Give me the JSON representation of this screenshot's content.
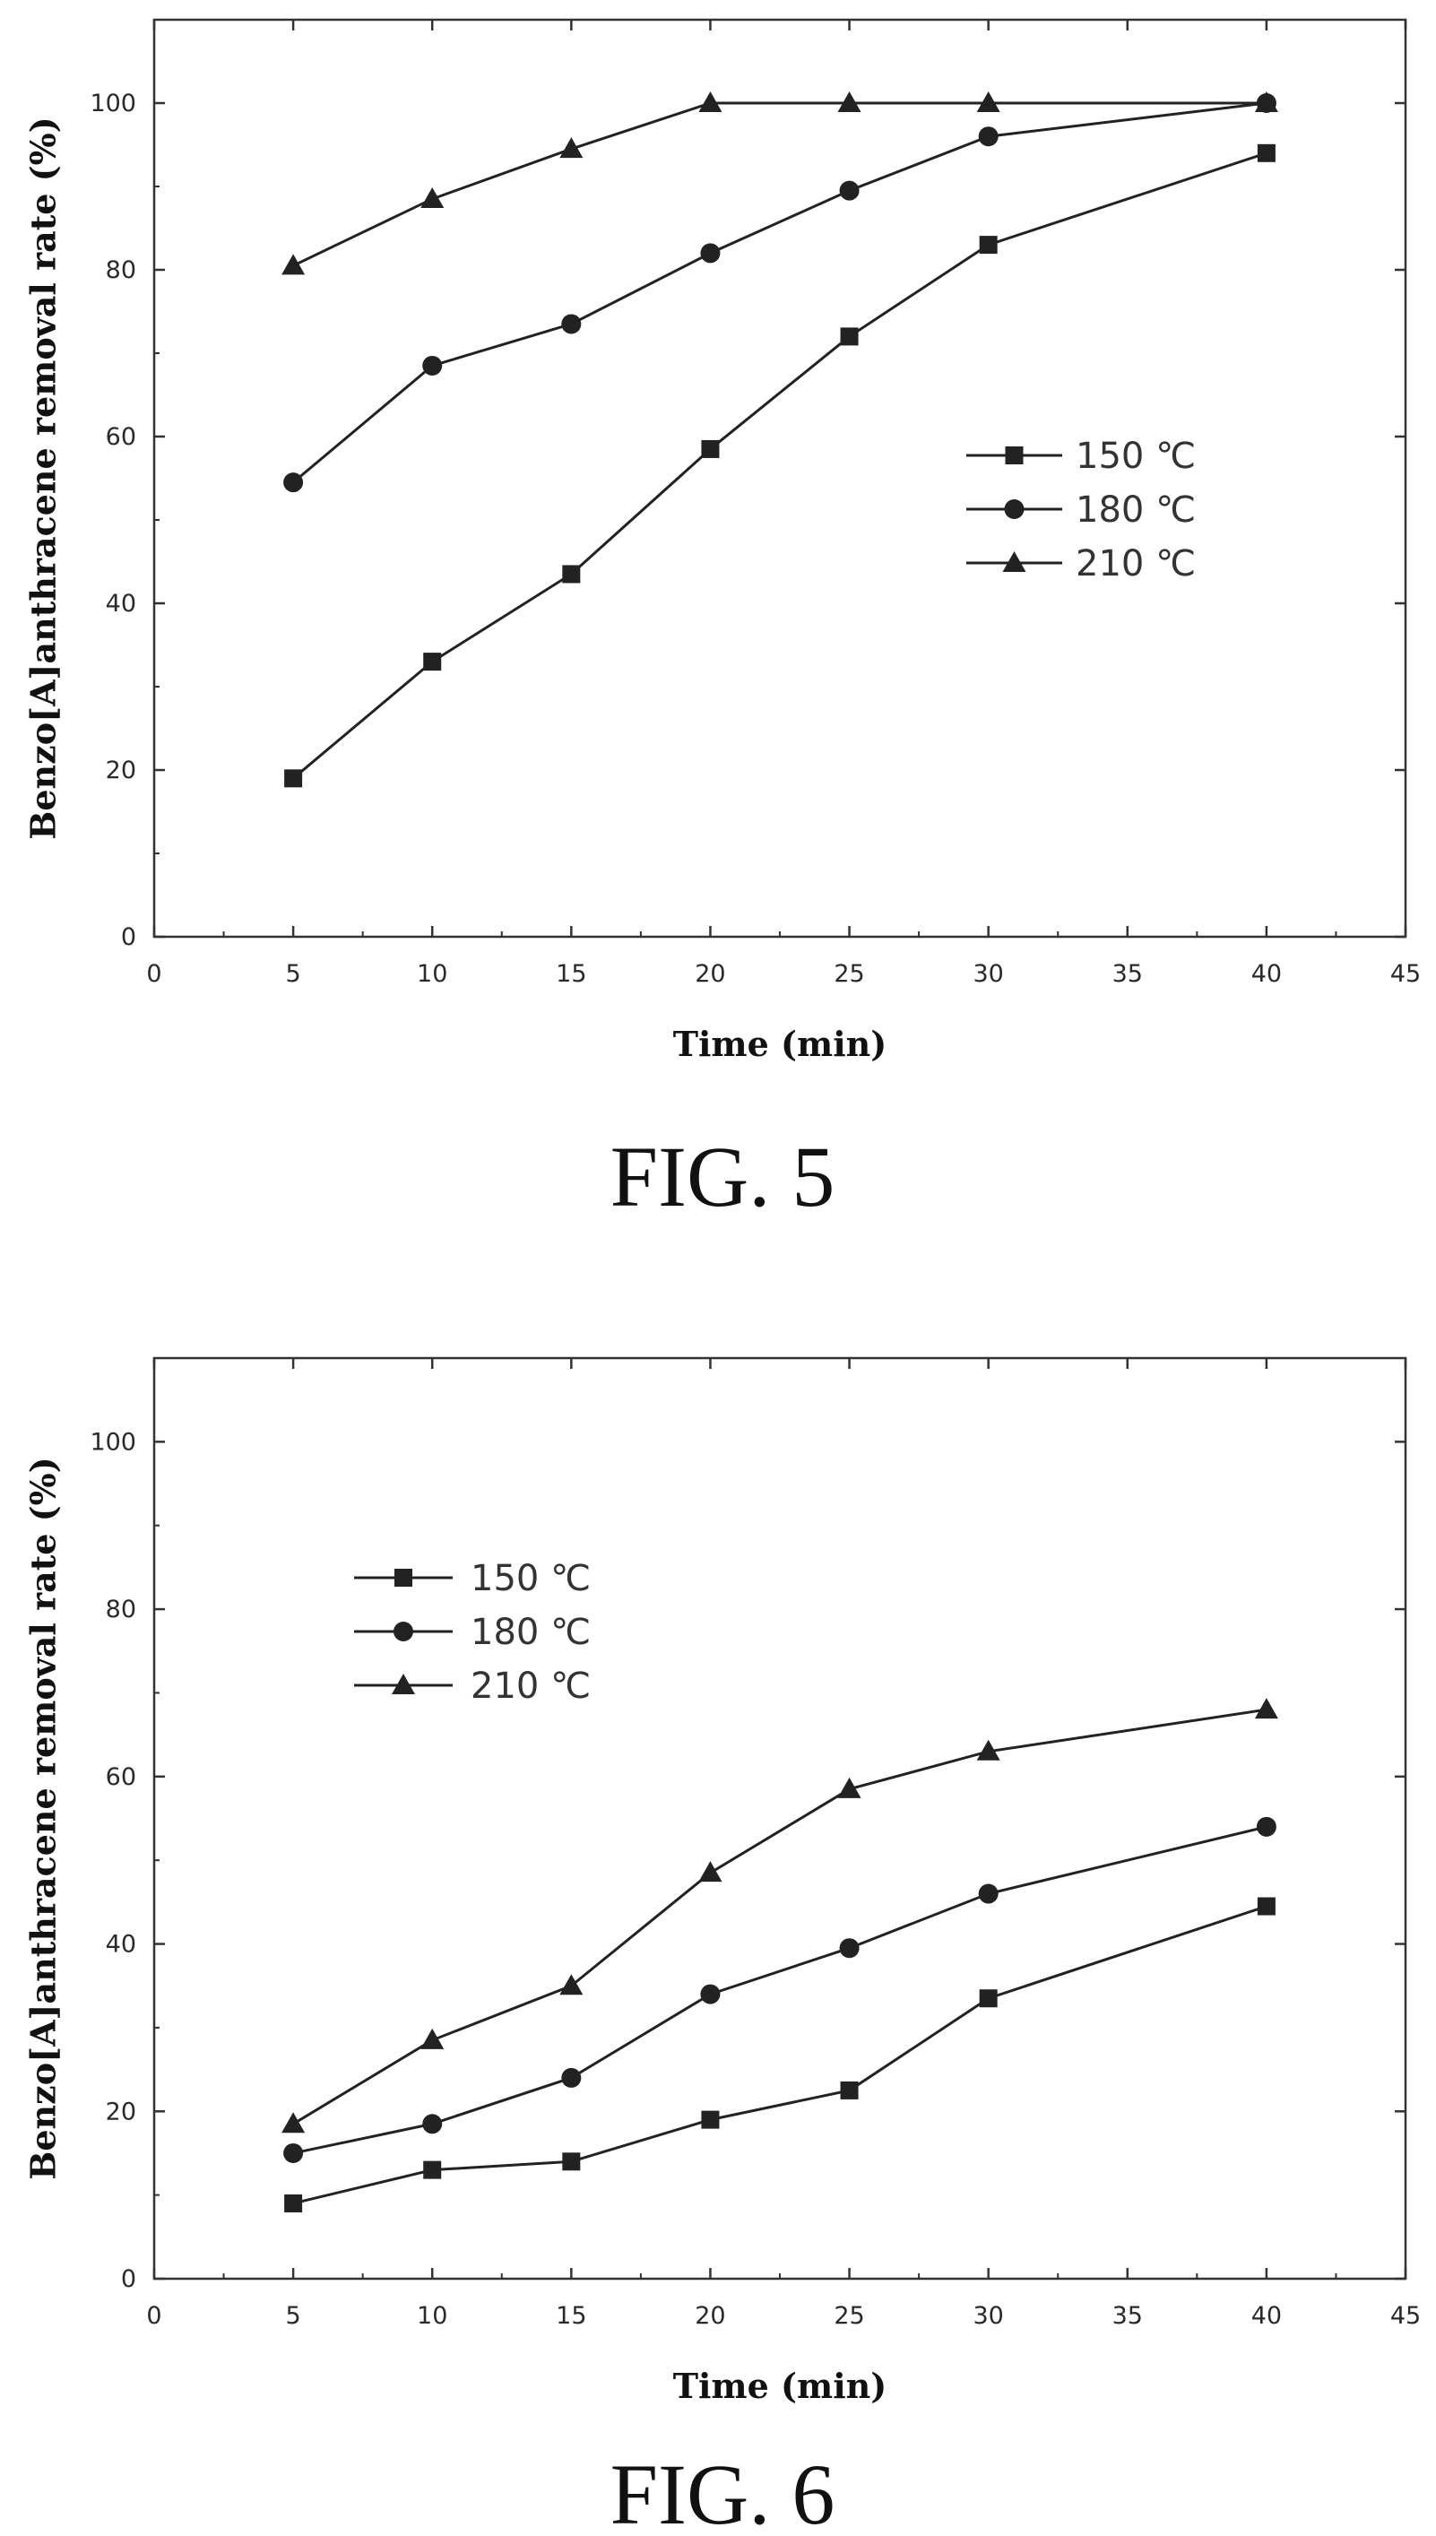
{
  "chart_data": [
    {
      "type": "line",
      "caption": "FIG. 5",
      "xlabel": "Time (min)",
      "ylabel": "Benzo[A]anthracene removal rate (%)",
      "xlim": [
        0,
        45
      ],
      "ylim": [
        0,
        110
      ],
      "xticks": [
        0,
        5,
        10,
        15,
        20,
        25,
        30,
        35,
        40,
        45
      ],
      "yticks": [
        0,
        20,
        40,
        60,
        80,
        100
      ],
      "grid": false,
      "legend_position": "center-right",
      "x": [
        5,
        10,
        15,
        20,
        25,
        30,
        40
      ],
      "series": [
        {
          "name": "150 ℃",
          "marker": "square",
          "values": [
            19,
            33,
            43.5,
            58.5,
            72,
            83,
            94
          ]
        },
        {
          "name": "180 ℃",
          "marker": "circle",
          "values": [
            54.5,
            68.5,
            73.5,
            82,
            89.5,
            96,
            100
          ]
        },
        {
          "name": "210 ℃",
          "marker": "triangle",
          "values": [
            80.5,
            88.5,
            94.5,
            100,
            100,
            100,
            100
          ]
        }
      ]
    },
    {
      "type": "line",
      "caption": "FIG. 6",
      "xlabel": "Time (min)",
      "ylabel": "Benzo[A]anthracene removal rate (%)",
      "xlim": [
        0,
        45
      ],
      "ylim": [
        0,
        110
      ],
      "xticks": [
        0,
        5,
        10,
        15,
        20,
        25,
        30,
        35,
        40,
        45
      ],
      "yticks": [
        0,
        20,
        40,
        60,
        80,
        100
      ],
      "grid": false,
      "legend_position": "top-left",
      "x": [
        5,
        10,
        15,
        20,
        25,
        30,
        40
      ],
      "series": [
        {
          "name": "150 ℃",
          "marker": "square",
          "values": [
            9,
            13,
            14,
            19,
            22.5,
            33.5,
            44.5
          ]
        },
        {
          "name": "180 ℃",
          "marker": "circle",
          "values": [
            15,
            18.5,
            24,
            34,
            39.5,
            46,
            54
          ]
        },
        {
          "name": "210 ℃",
          "marker": "triangle",
          "values": [
            18.5,
            28.5,
            35,
            48.5,
            58.5,
            63,
            68
          ]
        }
      ]
    }
  ],
  "colors": {
    "line": "#222222",
    "axis": "#333333"
  }
}
